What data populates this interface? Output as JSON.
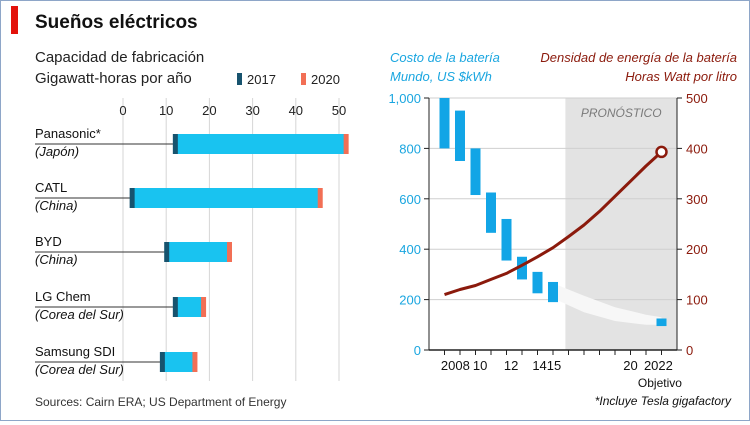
{
  "title": "Sueños eléctricos",
  "source": "Sources: Cairn ERA; US Department of Energy",
  "footnote": "*Incluye Tesla gigafactory",
  "colors": {
    "accent_red": "#e3120b",
    "bar_2017": "#17536e",
    "bar_2020": "#f26f55",
    "bar_main": "#19c3f0",
    "cost_bar": "#12a5e6",
    "cost_label": "#1aa6e0",
    "density_line": "#8b1a0c",
    "forecast_bg": "#e3e3e3"
  },
  "chart_data": [
    {
      "type": "bar",
      "orientation": "horizontal",
      "title": "Capacidad de fabricación",
      "subtitle": "Gigawatt-horas por año",
      "legend": [
        {
          "label": "2017",
          "color": "#17536e"
        },
        {
          "label": "2020",
          "color": "#f26f55"
        }
      ],
      "legend_placement": "top-right",
      "xlim": [
        0,
        50
      ],
      "xticks": [
        "0",
        "10",
        "20",
        "30",
        "40",
        "50"
      ],
      "grid": true,
      "categories": [
        {
          "name": "Panasonic*",
          "country": "(Japón)"
        },
        {
          "name": "CATL",
          "country": "(China)"
        },
        {
          "name": "BYD",
          "country": "(China)"
        },
        {
          "name": "LG Chem",
          "country": "(Corea del Sur)"
        },
        {
          "name": "Samsung SDI",
          "country": "(Corea del Sur)"
        }
      ],
      "series": [
        {
          "name": "2017",
          "values": [
            12,
            2,
            10,
            12,
            9
          ]
        },
        {
          "name": "2020",
          "values": [
            52,
            46,
            25,
            19,
            17
          ]
        }
      ]
    },
    {
      "type": "bar",
      "title": "Costo de la batería",
      "subtitle": "Mundo, US $kWh",
      "ylim": [
        0,
        1000
      ],
      "yticks": [
        "0",
        "200",
        "400",
        "600",
        "800",
        "1,000"
      ],
      "xlim": [
        2007,
        2023
      ],
      "xticks": [
        {
          "label": "2008",
          "x": 2008.7
        },
        {
          "label": "10",
          "x": 2010.3
        },
        {
          "label": "12",
          "x": 2012.3
        },
        {
          "label": "1415",
          "x": 2014.6
        },
        {
          "label": "20",
          "x": 2020.0
        },
        {
          "label": "2022",
          "x": 2021.8
        }
      ],
      "objective_label": "Objetivo",
      "forecast": {
        "from": 2015.8,
        "to": 2023,
        "label": "PRONÓSTICO"
      },
      "floating_bars": [
        {
          "x": 2008.0,
          "low": 800,
          "high": 1000
        },
        {
          "x": 2009.0,
          "low": 750,
          "high": 950
        },
        {
          "x": 2010.0,
          "low": 615,
          "high": 800
        },
        {
          "x": 2011.0,
          "low": 465,
          "high": 625
        },
        {
          "x": 2012.0,
          "low": 355,
          "high": 520
        },
        {
          "x": 2013.0,
          "low": 280,
          "high": 370
        },
        {
          "x": 2014.0,
          "low": 225,
          "high": 310
        },
        {
          "x": 2015.0,
          "low": 190,
          "high": 270
        },
        {
          "x": 2022.0,
          "low": 95,
          "high": 125
        }
      ],
      "forecast_band": [
        {
          "x": 2015.2,
          "low": 200,
          "high": 260
        },
        {
          "x": 2017,
          "low": 150,
          "high": 215
        },
        {
          "x": 2019,
          "low": 115,
          "high": 170
        },
        {
          "x": 2021,
          "low": 100,
          "high": 140
        },
        {
          "x": 2022,
          "low": 100,
          "high": 130
        }
      ]
    },
    {
      "type": "line",
      "title": "Densidad de energía de la batería",
      "subtitle": "Horas Watt por litro",
      "ylim": [
        0,
        500
      ],
      "yticks": [
        "0",
        "100",
        "200",
        "300",
        "400",
        "500"
      ],
      "axis_side": "right",
      "series": [
        {
          "x": [
            2008,
            2009,
            2010,
            2011,
            2012,
            2013,
            2014,
            2015,
            2016,
            2017,
            2018,
            2019,
            2020,
            2021,
            2022
          ],
          "values": [
            110,
            120,
            128,
            140,
            152,
            168,
            185,
            203,
            225,
            248,
            275,
            305,
            335,
            365,
            393
          ]
        }
      ],
      "objective_marker": {
        "x": 2022,
        "value": 393
      }
    }
  ]
}
